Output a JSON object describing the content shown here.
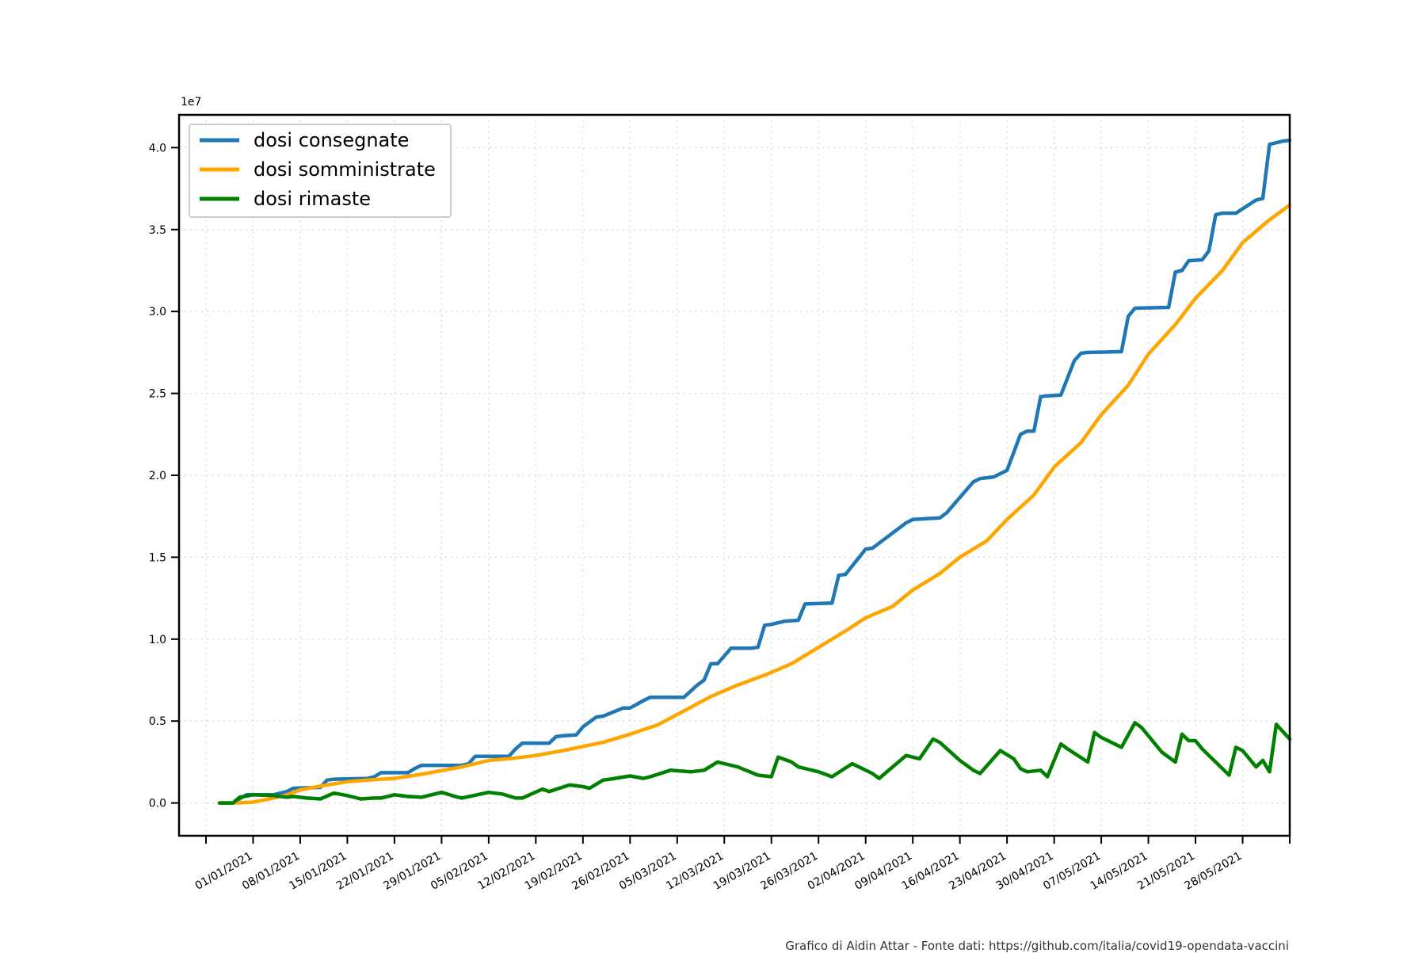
{
  "chart_data": {
    "type": "line",
    "xlabel": "",
    "ylabel": "",
    "y_offset_label": "1e7",
    "ylim": [
      -2000000,
      42000000
    ],
    "xlim": [
      "2020-12-21",
      "2021-06-04"
    ],
    "y_ticks": [
      0,
      5000000,
      10000000,
      15000000,
      20000000,
      25000000,
      30000000,
      35000000,
      40000000
    ],
    "y_tick_labels": [
      "0.0",
      "0.5",
      "1.0",
      "1.5",
      "2.0",
      "2.5",
      "3.0",
      "3.5",
      "4.0"
    ],
    "x_ticks": [
      "2020-12-25",
      "2021-01-01",
      "2021-01-08",
      "2021-01-15",
      "2021-01-22",
      "2021-01-29",
      "2021-02-05",
      "2021-02-12",
      "2021-02-19",
      "2021-02-26",
      "2021-03-05",
      "2021-03-12",
      "2021-03-19",
      "2021-03-26",
      "2021-04-02",
      "2021-04-09",
      "2021-04-16",
      "2021-04-23",
      "2021-04-30",
      "2021-05-07",
      "2021-05-14",
      "2021-05-21",
      "2021-05-28",
      "2021-06-04"
    ],
    "x_tick_labels": [
      "",
      "01/01/2021",
      "08/01/2021",
      "15/01/2021",
      "22/01/2021",
      "29/01/2021",
      "05/02/2021",
      "12/02/2021",
      "19/02/2021",
      "26/02/2021",
      "05/03/2021",
      "12/03/2021",
      "19/03/2021",
      "26/03/2021",
      "02/04/2021",
      "09/04/2021",
      "16/04/2021",
      "23/04/2021",
      "30/04/2021",
      "07/05/2021",
      "14/05/2021",
      "21/05/2021",
      "28/05/2021",
      ""
    ],
    "grid": true,
    "legend_position": "top-left",
    "series": [
      {
        "name": "dosi consegnate",
        "color": "#1f77b4",
        "x": [
          "2020-12-27",
          "2020-12-29",
          "2020-12-31",
          "2021-01-04",
          "2021-01-06",
          "2021-01-07",
          "2021-01-11",
          "2021-01-12",
          "2021-01-13",
          "2021-01-18",
          "2021-01-19",
          "2021-01-20",
          "2021-01-24",
          "2021-01-25",
          "2021-01-26",
          "2021-02-01",
          "2021-02-02",
          "2021-02-03",
          "2021-02-08",
          "2021-02-09",
          "2021-02-10",
          "2021-02-14",
          "2021-02-15",
          "2021-02-16",
          "2021-02-18",
          "2021-02-19",
          "2021-02-21",
          "2021-02-22",
          "2021-02-25",
          "2021-02-26",
          "2021-02-28",
          "2021-03-01",
          "2021-03-06",
          "2021-03-08",
          "2021-03-09",
          "2021-03-10",
          "2021-03-11",
          "2021-03-13",
          "2021-03-16",
          "2021-03-17",
          "2021-03-18",
          "2021-03-19",
          "2021-03-21",
          "2021-03-23",
          "2021-03-24",
          "2021-03-28",
          "2021-03-29",
          "2021-03-30",
          "2021-04-02",
          "2021-04-03",
          "2021-04-08",
          "2021-04-09",
          "2021-04-13",
          "2021-04-14",
          "2021-04-18",
          "2021-04-19",
          "2021-04-20",
          "2021-04-21",
          "2021-04-23",
          "2021-04-25",
          "2021-04-26",
          "2021-04-27",
          "2021-04-28",
          "2021-04-29",
          "2021-05-01",
          "2021-05-03",
          "2021-05-04",
          "2021-05-05",
          "2021-05-10",
          "2021-05-11",
          "2021-05-12",
          "2021-05-17",
          "2021-05-18",
          "2021-05-19",
          "2021-05-20",
          "2021-05-22",
          "2021-05-23",
          "2021-05-24",
          "2021-05-25",
          "2021-05-26",
          "2021-05-27",
          "2021-05-30",
          "2021-05-31",
          "2021-06-01",
          "2021-06-02",
          "2021-06-03",
          "2021-06-04"
        ],
        "y": [
          0,
          0,
          500000,
          500000,
          700000,
          900000,
          950000,
          1400000,
          1450000,
          1500000,
          1600000,
          1850000,
          1850000,
          2100000,
          2300000,
          2300000,
          2400000,
          2850000,
          2850000,
          3300000,
          3650000,
          3650000,
          4050000,
          4100000,
          4150000,
          4650000,
          5250000,
          5300000,
          5800000,
          5800000,
          6250000,
          6450000,
          6450000,
          7200000,
          7500000,
          8500000,
          8500000,
          9450000,
          9450000,
          9500000,
          10850000,
          10900000,
          11100000,
          11150000,
          12150000,
          12200000,
          13900000,
          13950000,
          15500000,
          15550000,
          17100000,
          17300000,
          17400000,
          17700000,
          19600000,
          19800000,
          19850000,
          19900000,
          20300000,
          22500000,
          22700000,
          22700000,
          24800000,
          24850000,
          24900000,
          27000000,
          27450000,
          27500000,
          27550000,
          29700000,
          30200000,
          30250000,
          32400000,
          32500000,
          33100000,
          33150000,
          33700000,
          35900000,
          36000000,
          36000000,
          36000000,
          36800000,
          36900000,
          40200000,
          40300000,
          40400000,
          40450000
        ]
      },
      {
        "name": "dosi somministrate",
        "color": "#ffa500",
        "x": [
          "2020-12-27",
          "2020-12-29",
          "2021-01-01",
          "2021-01-04",
          "2021-01-06",
          "2021-01-08",
          "2021-01-12",
          "2021-01-15",
          "2021-01-18",
          "2021-01-22",
          "2021-01-26",
          "2021-02-01",
          "2021-02-05",
          "2021-02-08",
          "2021-02-12",
          "2021-02-16",
          "2021-02-19",
          "2021-02-22",
          "2021-02-26",
          "2021-03-02",
          "2021-03-05",
          "2021-03-10",
          "2021-03-14",
          "2021-03-18",
          "2021-03-22",
          "2021-03-26",
          "2021-03-30",
          "2021-04-02",
          "2021-04-06",
          "2021-04-09",
          "2021-04-13",
          "2021-04-16",
          "2021-04-20",
          "2021-04-23",
          "2021-04-27",
          "2021-04-30",
          "2021-05-04",
          "2021-05-07",
          "2021-05-11",
          "2021-05-14",
          "2021-05-18",
          "2021-05-21",
          "2021-05-25",
          "2021-05-28",
          "2021-06-01",
          "2021-06-04"
        ],
        "y": [
          0,
          0,
          50000,
          300000,
          500000,
          800000,
          1100000,
          1300000,
          1400000,
          1500000,
          1750000,
          2200000,
          2600000,
          2700000,
          2900000,
          3200000,
          3450000,
          3700000,
          4200000,
          4750000,
          5400000,
          6500000,
          7200000,
          7800000,
          8500000,
          9500000,
          10500000,
          11300000,
          12000000,
          13000000,
          14000000,
          15000000,
          16000000,
          17300000,
          18800000,
          20500000,
          22000000,
          23700000,
          25500000,
          27400000,
          29200000,
          30800000,
          32500000,
          34200000,
          35600000,
          36500000
        ]
      },
      {
        "name": "dosi rimaste",
        "color": "#008000",
        "x": [
          "2020-12-27",
          "2020-12-29",
          "2020-12-30",
          "2021-01-01",
          "2021-01-04",
          "2021-01-06",
          "2021-01-07",
          "2021-01-09",
          "2021-01-11",
          "2021-01-13",
          "2021-01-15",
          "2021-01-17",
          "2021-01-19",
          "2021-01-20",
          "2021-01-22",
          "2021-01-24",
          "2021-01-26",
          "2021-01-29",
          "2021-01-31",
          "2021-02-01",
          "2021-02-05",
          "2021-02-07",
          "2021-02-09",
          "2021-02-10",
          "2021-02-13",
          "2021-02-14",
          "2021-02-17",
          "2021-02-18",
          "2021-02-19",
          "2021-02-20",
          "2021-02-22",
          "2021-02-23",
          "2021-02-26",
          "2021-02-28",
          "2021-03-01",
          "2021-03-04",
          "2021-03-07",
          "2021-03-09",
          "2021-03-11",
          "2021-03-12",
          "2021-03-14",
          "2021-03-17",
          "2021-03-19",
          "2021-03-20",
          "2021-03-22",
          "2021-03-23",
          "2021-03-26",
          "2021-03-28",
          "2021-03-31",
          "2021-04-01",
          "2021-04-03",
          "2021-04-04",
          "2021-04-08",
          "2021-04-10",
          "2021-04-12",
          "2021-04-13",
          "2021-04-16",
          "2021-04-17",
          "2021-04-18",
          "2021-04-19",
          "2021-04-22",
          "2021-04-24",
          "2021-04-25",
          "2021-04-26",
          "2021-04-28",
          "2021-04-29",
          "2021-05-01",
          "2021-05-02",
          "2021-05-05",
          "2021-05-06",
          "2021-05-07",
          "2021-05-10",
          "2021-05-12",
          "2021-05-13",
          "2021-05-15",
          "2021-05-16",
          "2021-05-18",
          "2021-05-19",
          "2021-05-20",
          "2021-05-21",
          "2021-05-22",
          "2021-05-23",
          "2021-05-25",
          "2021-05-26",
          "2021-05-27",
          "2021-05-28",
          "2021-05-30",
          "2021-05-31",
          "2021-06-01",
          "2021-06-02",
          "2021-06-04"
        ],
        "y": [
          0,
          0,
          350000,
          500000,
          450000,
          350000,
          400000,
          300000,
          250000,
          600000,
          450000,
          250000,
          300000,
          300000,
          500000,
          400000,
          350000,
          650000,
          400000,
          300000,
          650000,
          550000,
          300000,
          300000,
          850000,
          700000,
          1100000,
          1050000,
          1000000,
          900000,
          1400000,
          1450000,
          1650000,
          1500000,
          1600000,
          2000000,
          1900000,
          2000000,
          2500000,
          2400000,
          2200000,
          1700000,
          1600000,
          2800000,
          2500000,
          2200000,
          1900000,
          1600000,
          2400000,
          2200000,
          1800000,
          1500000,
          2900000,
          2700000,
          3900000,
          3700000,
          2600000,
          2300000,
          2000000,
          1800000,
          3200000,
          2700000,
          2100000,
          1900000,
          2000000,
          1600000,
          3600000,
          3300000,
          2500000,
          4300000,
          4000000,
          3400000,
          4900000,
          4600000,
          3600000,
          3100000,
          2500000,
          4200000,
          3800000,
          3800000,
          3300000,
          2900000,
          2100000,
          1700000,
          3400000,
          3200000,
          2200000,
          2600000,
          1900000,
          4800000,
          3900000
        ]
      }
    ]
  },
  "footer": {
    "credit": "Grafico di Aidin Attar - Fonte dati: https://github.com/italia/covid19-opendata-vaccini"
  }
}
